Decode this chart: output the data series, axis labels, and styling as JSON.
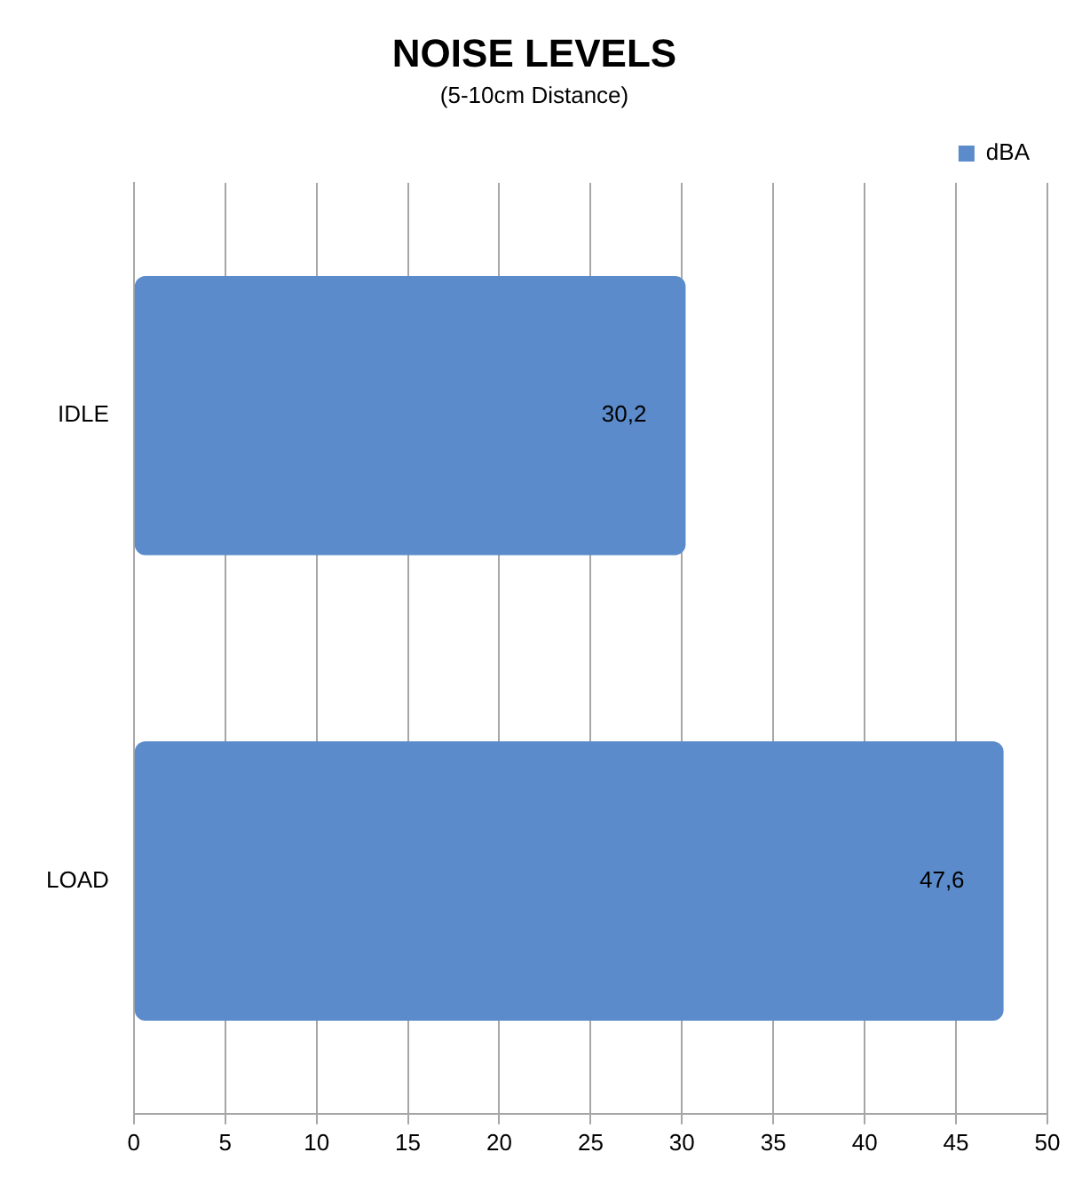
{
  "chart_data": {
    "type": "bar",
    "orientation": "horizontal",
    "title": "NOISE LEVELS",
    "subtitle": "(5-10cm Distance)",
    "categories": [
      "IDLE",
      "LOAD"
    ],
    "series": [
      {
        "name": "dBA",
        "color": "#5b8bcb",
        "values": [
          30.2,
          47.6
        ],
        "value_labels": [
          "30,2",
          "47,6"
        ]
      }
    ],
    "xlim": [
      0,
      50
    ],
    "xticks": [
      0,
      5,
      10,
      15,
      20,
      25,
      30,
      35,
      40,
      45,
      50
    ],
    "grid": "x",
    "legend": "top right"
  }
}
